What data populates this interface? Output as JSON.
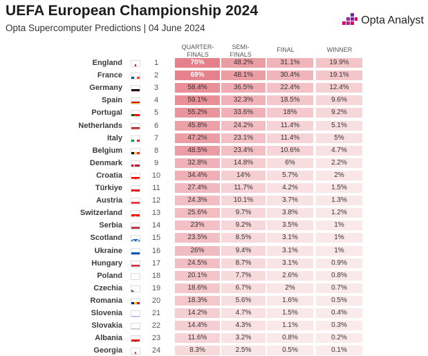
{
  "header": {
    "title": "UEFA European Championship 2024",
    "subtitle": "Opta Supercomputer Predictions | 04 June 2024",
    "brand": "Opta Analyst"
  },
  "columns": [
    "QUARTER-\nFINALS",
    "SEMI-\nFINALS",
    "FINAL",
    "WINNER"
  ],
  "colors": {
    "heat_high": "#e6818b",
    "heat_low": "#fbeced",
    "brand_pink": "#e0006f",
    "brand_purple": "#6a2ea0"
  },
  "chart_data": {
    "type": "table",
    "title": "UEFA European Championship 2024",
    "subtitle": "Opta Supercomputer Predictions | 04 June 2024",
    "columns": [
      "QUARTER-FINALS",
      "SEMI-FINALS",
      "FINAL",
      "WINNER"
    ],
    "rows": [
      {
        "team": "England",
        "rank": "1",
        "flag": "eng",
        "qf": "70%",
        "sf": "48.2%",
        "final": "31.1%",
        "winner": "19.9%"
      },
      {
        "team": "France",
        "rank": "2",
        "flag": "fra",
        "qf": "69%",
        "sf": "48.1%",
        "final": "30.4%",
        "winner": "19.1%"
      },
      {
        "team": "Germany",
        "rank": "3",
        "flag": "ger",
        "qf": "58.4%",
        "sf": "36.5%",
        "final": "22.4%",
        "winner": "12.4%"
      },
      {
        "team": "Spain",
        "rank": "4",
        "flag": "esp",
        "qf": "59.1%",
        "sf": "32.3%",
        "final": "18.5%",
        "winner": "9.6%"
      },
      {
        "team": "Portugal",
        "rank": "5",
        "flag": "por",
        "qf": "55.2%",
        "sf": "33.6%",
        "final": "18%",
        "winner": "9.2%"
      },
      {
        "team": "Netherlands",
        "rank": "6",
        "flag": "ned",
        "qf": "45.8%",
        "sf": "24.2%",
        "final": "11.4%",
        "winner": "5.1%"
      },
      {
        "team": "Italy",
        "rank": "7",
        "flag": "ita",
        "qf": "47.2%",
        "sf": "23.1%",
        "final": "11.4%",
        "winner": "5%"
      },
      {
        "team": "Belgium",
        "rank": "8",
        "flag": "bel",
        "qf": "48.5%",
        "sf": "23.4%",
        "final": "10.6%",
        "winner": "4.7%"
      },
      {
        "team": "Denmark",
        "rank": "9",
        "flag": "den",
        "qf": "32.8%",
        "sf": "14.8%",
        "final": "6%",
        "winner": "2.2%"
      },
      {
        "team": "Croatia",
        "rank": "10",
        "flag": "cro",
        "qf": "34.4%",
        "sf": "14%",
        "final": "5.7%",
        "winner": "2%"
      },
      {
        "team": "Türkiye",
        "rank": "11",
        "flag": "tur",
        "qf": "27.4%",
        "sf": "11.7%",
        "final": "4.2%",
        "winner": "1.5%"
      },
      {
        "team": "Austria",
        "rank": "12",
        "flag": "aut",
        "qf": "24.3%",
        "sf": "10.1%",
        "final": "3.7%",
        "winner": "1.3%"
      },
      {
        "team": "Switzerland",
        "rank": "13",
        "flag": "sui",
        "qf": "25.6%",
        "sf": "9.7%",
        "final": "3.8%",
        "winner": "1.2%"
      },
      {
        "team": "Serbia",
        "rank": "14",
        "flag": "srb",
        "qf": "23%",
        "sf": "9.2%",
        "final": "3.5%",
        "winner": "1%"
      },
      {
        "team": "Scotland",
        "rank": "15",
        "flag": "sco",
        "qf": "23.5%",
        "sf": "8.5%",
        "final": "3.1%",
        "winner": "1%"
      },
      {
        "team": "Ukraine",
        "rank": "16",
        "flag": "ukr",
        "qf": "26%",
        "sf": "9.4%",
        "final": "3.1%",
        "winner": "1%"
      },
      {
        "team": "Hungary",
        "rank": "17",
        "flag": "hun",
        "qf": "24.5%",
        "sf": "8.7%",
        "final": "3.1%",
        "winner": "0.9%"
      },
      {
        "team": "Poland",
        "rank": "18",
        "flag": "pol",
        "qf": "20.1%",
        "sf": "7.7%",
        "final": "2.6%",
        "winner": "0.8%"
      },
      {
        "team": "Czechia",
        "rank": "19",
        "flag": "cze",
        "qf": "18.6%",
        "sf": "6.7%",
        "final": "2%",
        "winner": "0.7%"
      },
      {
        "team": "Romania",
        "rank": "20",
        "flag": "rou",
        "qf": "18.3%",
        "sf": "5.6%",
        "final": "1.6%",
        "winner": "0.5%"
      },
      {
        "team": "Slovenia",
        "rank": "21",
        "flag": "svn",
        "qf": "14.2%",
        "sf": "4.7%",
        "final": "1.5%",
        "winner": "0.4%"
      },
      {
        "team": "Slovakia",
        "rank": "22",
        "flag": "svk",
        "qf": "14.4%",
        "sf": "4.3%",
        "final": "1.1%",
        "winner": "0.3%"
      },
      {
        "team": "Albania",
        "rank": "23",
        "flag": "alb",
        "qf": "11.6%",
        "sf": "3.2%",
        "final": "0.8%",
        "winner": "0.2%"
      },
      {
        "team": "Georgia",
        "rank": "24",
        "flag": "geo",
        "qf": "8.3%",
        "sf": "2.5%",
        "final": "0.5%",
        "winner": "0.1%"
      }
    ]
  }
}
